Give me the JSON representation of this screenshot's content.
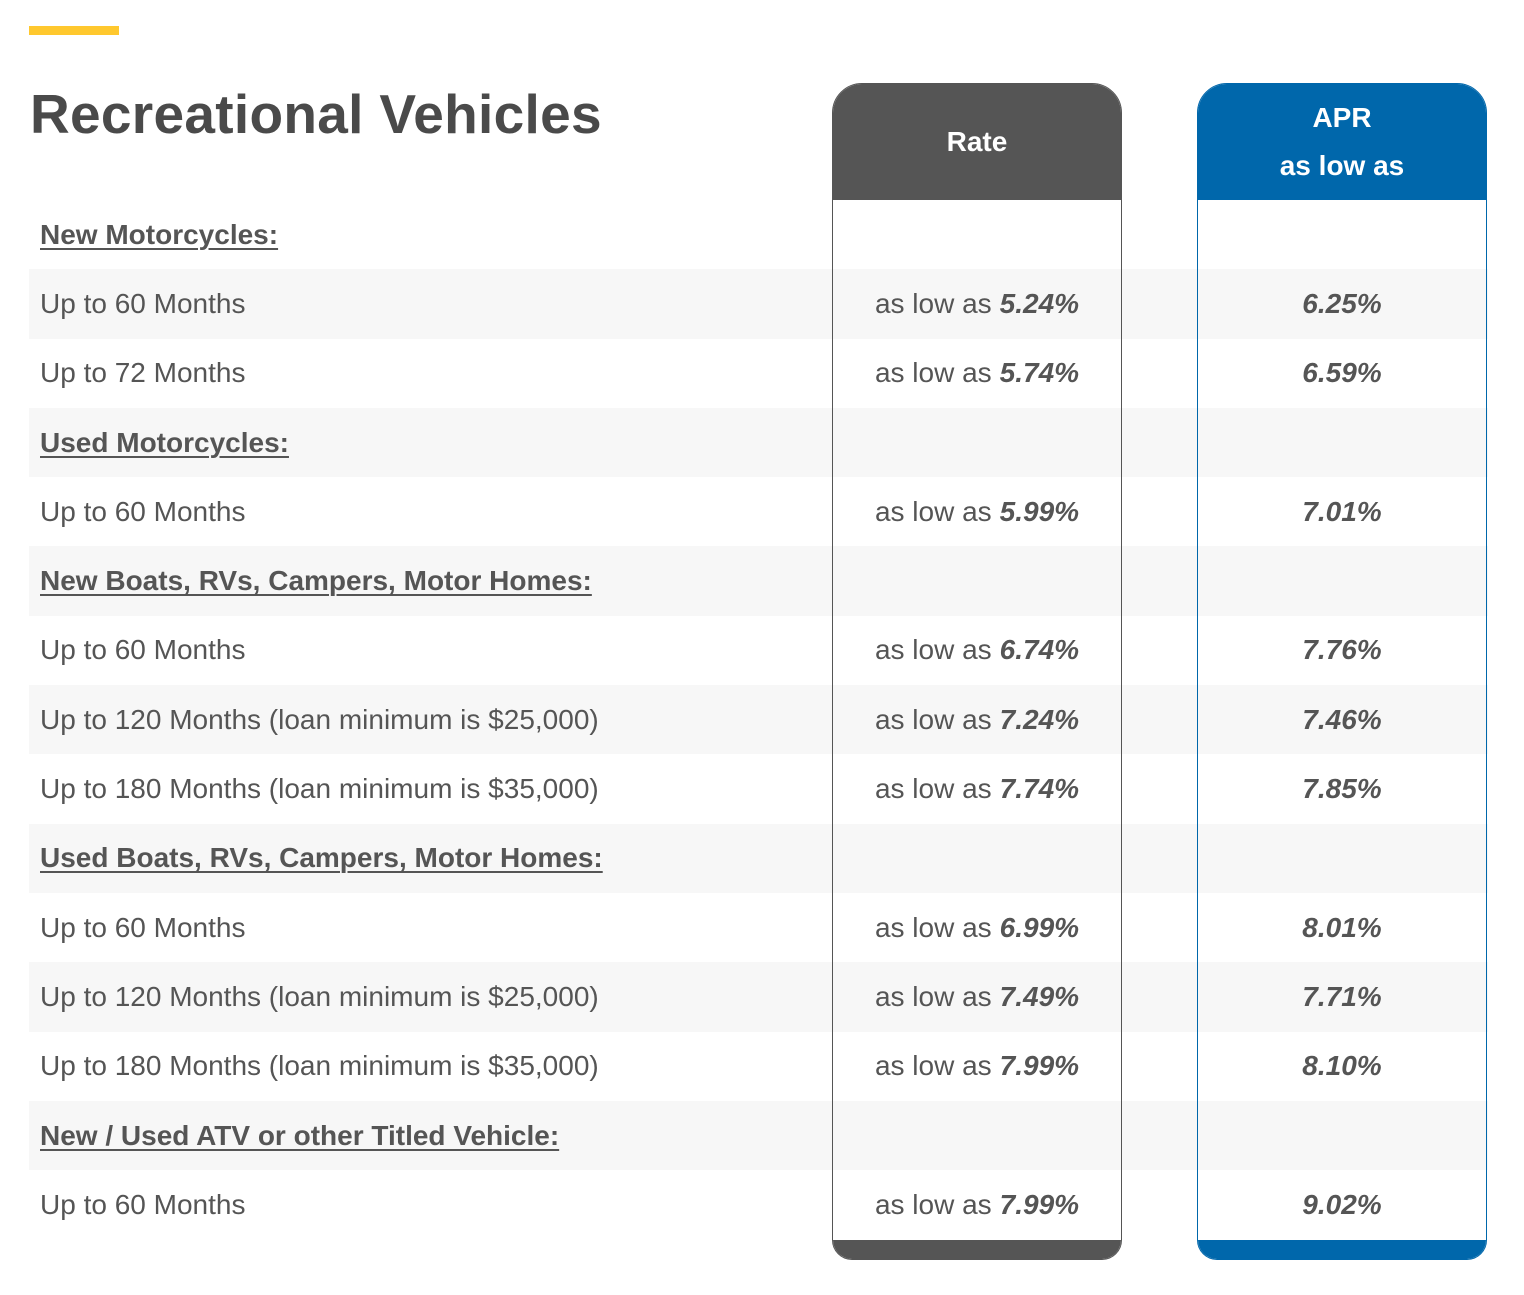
{
  "page": {
    "title": "Recreational Vehicles",
    "accent_color": "#ffc82e"
  },
  "columns": {
    "rate": {
      "label": "Rate",
      "color": "#555555"
    },
    "apr": {
      "line1": "APR",
      "line2": "as low as",
      "color": "#0067ab"
    }
  },
  "rate_prefix": "as low as",
  "rows": [
    {
      "type": "heading",
      "label": "New Motorcycles:"
    },
    {
      "type": "item",
      "label": "Up to 60 Months",
      "rate": "5.24%",
      "apr": "6.25%"
    },
    {
      "type": "item",
      "label": "Up to 72 Months",
      "rate": "5.74%",
      "apr": "6.59%"
    },
    {
      "type": "heading",
      "label": "Used Motorcycles:"
    },
    {
      "type": "item",
      "label": "Up to 60 Months",
      "rate": "5.99%",
      "apr": "7.01%"
    },
    {
      "type": "heading",
      "label": "New Boats, RVs, Campers, Motor Homes:"
    },
    {
      "type": "item",
      "label": "Up to 60 Months",
      "rate": "6.74%",
      "apr": "7.76%"
    },
    {
      "type": "item",
      "label": "Up to 120 Months (loan minimum is $25,000)",
      "rate": "7.24%",
      "apr": "7.46%"
    },
    {
      "type": "item",
      "label": "Up to 180 Months (loan minimum is $35,000)",
      "rate": "7.74%",
      "apr": "7.85%"
    },
    {
      "type": "heading",
      "label": "Used Boats, RVs, Campers, Motor Homes:"
    },
    {
      "type": "item",
      "label": "Up to 60 Months",
      "rate": "6.99%",
      "apr": "8.01%"
    },
    {
      "type": "item",
      "label": "Up to 120 Months (loan minimum is $25,000)",
      "rate": "7.49%",
      "apr": "7.71%"
    },
    {
      "type": "item",
      "label": "Up to 180 Months (loan minimum is $35,000)",
      "rate": "7.99%",
      "apr": "8.10%"
    },
    {
      "type": "heading",
      "label": "New / Used ATV or other Titled Vehicle:"
    },
    {
      "type": "item",
      "label": "Up to 60 Months",
      "rate": "7.99%",
      "apr": "9.02%"
    }
  ]
}
